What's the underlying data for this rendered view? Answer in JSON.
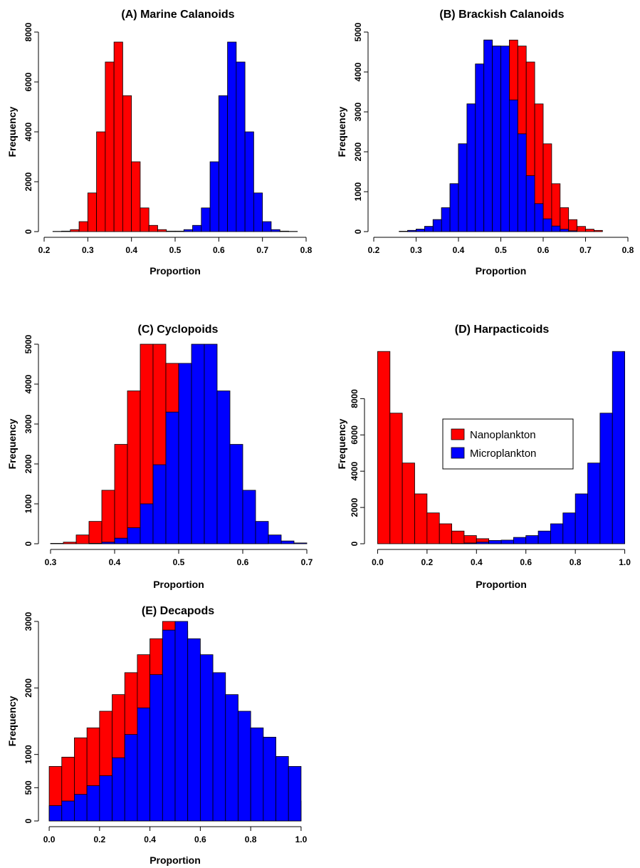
{
  "colors": {
    "nanoplankton": "#ff0000",
    "microplankton": "#0000ff"
  },
  "legend": {
    "items": [
      {
        "label": "Nanoplankton",
        "color": "#ff0000"
      },
      {
        "label": "Microplankton",
        "color": "#0000ff"
      }
    ]
  },
  "chart_data": [
    {
      "type": "bar",
      "title": "(A) Marine Calanoids",
      "xlabel": "Proportion",
      "ylabel": "Frequency",
      "xlim": [
        0.2,
        0.8
      ],
      "ylim": [
        0,
        8000
      ],
      "xticks": [
        "0.2",
        "0.3",
        "0.4",
        "0.5",
        "0.6",
        "0.7",
        "0.8"
      ],
      "yticks": [
        "0",
        "2000",
        "4000",
        "6000",
        "8000"
      ],
      "bin_width": 0.02,
      "series": [
        {
          "name": "Nanoplankton",
          "color": "#ff0000",
          "bins": [
            [
              0.22,
              10
            ],
            [
              0.24,
              20
            ],
            [
              0.26,
              80
            ],
            [
              0.28,
              400
            ],
            [
              0.3,
              1550
            ],
            [
              0.32,
              4000
            ],
            [
              0.34,
              6800
            ],
            [
              0.36,
              7600
            ],
            [
              0.38,
              5450
            ],
            [
              0.4,
              2800
            ],
            [
              0.42,
              950
            ],
            [
              0.44,
              250
            ],
            [
              0.46,
              80
            ],
            [
              0.48,
              20
            ]
          ]
        },
        {
          "name": "Microplankton",
          "color": "#0000ff",
          "bins": [
            [
              0.5,
              20
            ],
            [
              0.52,
              80
            ],
            [
              0.54,
              250
            ],
            [
              0.56,
              950
            ],
            [
              0.58,
              2800
            ],
            [
              0.6,
              5450
            ],
            [
              0.62,
              7600
            ],
            [
              0.64,
              6800
            ],
            [
              0.66,
              4000
            ],
            [
              0.68,
              1550
            ],
            [
              0.7,
              400
            ],
            [
              0.72,
              80
            ],
            [
              0.74,
              20
            ],
            [
              0.76,
              10
            ]
          ]
        }
      ]
    },
    {
      "type": "bar",
      "title": "(B) Brackish Calanoids",
      "xlabel": "Proportion",
      "ylabel": "Frequency",
      "xlim": [
        0.2,
        0.8
      ],
      "ylim": [
        0,
        5000
      ],
      "xticks": [
        "0.2",
        "0.3",
        "0.4",
        "0.5",
        "0.6",
        "0.7",
        "0.8"
      ],
      "yticks": [
        "0",
        "1000",
        "2000",
        "3000",
        "4000",
        "5000"
      ],
      "bin_width": 0.02,
      "series": [
        {
          "name": "Nanoplankton",
          "color": "#ff0000",
          "bins": [
            [
              0.26,
              10
            ],
            [
              0.28,
              30
            ],
            [
              0.3,
              60
            ],
            [
              0.32,
              130
            ],
            [
              0.34,
              300
            ],
            [
              0.36,
              600
            ],
            [
              0.38,
              1200
            ],
            [
              0.4,
              2200
            ],
            [
              0.42,
              3200
            ],
            [
              0.44,
              4200
            ],
            [
              0.46,
              4800
            ],
            [
              0.48,
              4650
            ],
            [
              0.5,
              3650
            ],
            [
              0.52,
              4800
            ],
            [
              0.54,
              4650
            ],
            [
              0.56,
              4250
            ],
            [
              0.58,
              3200
            ],
            [
              0.6,
              2200
            ],
            [
              0.62,
              1200
            ],
            [
              0.64,
              600
            ],
            [
              0.66,
              300
            ],
            [
              0.68,
              130
            ],
            [
              0.7,
              60
            ],
            [
              0.72,
              30
            ]
          ]
        },
        {
          "name": "Microplankton",
          "color": "#0000ff",
          "bins": [
            [
              0.28,
              30
            ],
            [
              0.3,
              60
            ],
            [
              0.32,
              130
            ],
            [
              0.34,
              300
            ],
            [
              0.36,
              600
            ],
            [
              0.38,
              1200
            ],
            [
              0.4,
              2200
            ],
            [
              0.42,
              3200
            ],
            [
              0.44,
              4200
            ],
            [
              0.46,
              4800
            ],
            [
              0.48,
              4650
            ],
            [
              0.5,
              4650
            ],
            [
              0.52,
              3300
            ],
            [
              0.54,
              2450
            ],
            [
              0.56,
              1400
            ],
            [
              0.58,
              700
            ],
            [
              0.6,
              320
            ],
            [
              0.62,
              140
            ],
            [
              0.64,
              60
            ],
            [
              0.66,
              20
            ]
          ]
        }
      ]
    },
    {
      "type": "bar",
      "title": "(C) Cyclopoids",
      "xlabel": "Proportion",
      "ylabel": "Frequency",
      "xlim": [
        0.29,
        0.71
      ],
      "ylim": [
        0,
        5000
      ],
      "xticks": [
        "0.3",
        "0.4",
        "0.5",
        "0.6",
        "0.7"
      ],
      "yticks": [
        "0",
        "1000",
        "2000",
        "3000",
        "4000",
        "5000"
      ],
      "bin_width": 0.02,
      "series": [
        {
          "name": "Nanoplankton",
          "color": "#ff0000",
          "bins": [
            [
              0.3,
              10
            ],
            [
              0.32,
              40
            ],
            [
              0.34,
              220
            ],
            [
              0.36,
              560
            ],
            [
              0.38,
              1340
            ],
            [
              0.4,
              2490
            ],
            [
              0.42,
              3830
            ],
            [
              0.44,
              5010
            ],
            [
              0.46,
              5240
            ],
            [
              0.48,
              4520
            ],
            [
              0.5,
              3300
            ],
            [
              0.52,
              2000
            ],
            [
              0.54,
              1000
            ],
            [
              0.56,
              400
            ],
            [
              0.58,
              140
            ],
            [
              0.6,
              40
            ],
            [
              0.62,
              10
            ]
          ]
        },
        {
          "name": "Microplankton",
          "color": "#0000ff",
          "bins": [
            [
              0.36,
              10
            ],
            [
              0.38,
              40
            ],
            [
              0.4,
              140
            ],
            [
              0.42,
              400
            ],
            [
              0.44,
              1000
            ],
            [
              0.46,
              1980
            ],
            [
              0.48,
              3300
            ],
            [
              0.5,
              4520
            ],
            [
              0.52,
              5240
            ],
            [
              0.54,
              5010
            ],
            [
              0.56,
              3830
            ],
            [
              0.58,
              2490
            ],
            [
              0.6,
              1340
            ],
            [
              0.62,
              560
            ],
            [
              0.64,
              220
            ],
            [
              0.66,
              70
            ],
            [
              0.68,
              20
            ]
          ]
        }
      ]
    },
    {
      "type": "bar",
      "title": "(D) Harpacticoids",
      "xlabel": "Proportion",
      "ylabel": "Frequency",
      "xlim": [
        -0.03,
        1.03
      ],
      "ylim": [
        0,
        11000
      ],
      "xticks": [
        "0.0",
        "0.2",
        "0.4",
        "0.6",
        "0.8",
        "1.0"
      ],
      "yticks": [
        "0",
        "2000",
        "4000",
        "6000",
        "8000"
      ],
      "bin_width": 0.05,
      "series": [
        {
          "name": "Nanoplankton",
          "color": "#ff0000",
          "bins": [
            [
              0.0,
              10600
            ],
            [
              0.05,
              7200
            ],
            [
              0.1,
              4450
            ],
            [
              0.15,
              2750
            ],
            [
              0.2,
              1700
            ],
            [
              0.25,
              1100
            ],
            [
              0.3,
              700
            ],
            [
              0.35,
              450
            ],
            [
              0.4,
              280
            ],
            [
              0.45,
              180
            ],
            [
              0.5,
              120
            ],
            [
              0.55,
              70
            ],
            [
              0.6,
              40
            ],
            [
              0.65,
              20
            ]
          ]
        },
        {
          "name": "Microplankton",
          "color": "#0000ff",
          "bins": [
            [
              0.3,
              10
            ],
            [
              0.35,
              40
            ],
            [
              0.4,
              90
            ],
            [
              0.45,
              180
            ],
            [
              0.5,
              200
            ],
            [
              0.55,
              350
            ],
            [
              0.6,
              450
            ],
            [
              0.65,
              700
            ],
            [
              0.7,
              1100
            ],
            [
              0.75,
              1700
            ],
            [
              0.8,
              2750
            ],
            [
              0.85,
              4450
            ],
            [
              0.9,
              7200
            ],
            [
              0.95,
              10600
            ]
          ]
        }
      ]
    },
    {
      "type": "bar",
      "title": "(E) Decapods",
      "xlabel": "Proportion",
      "ylabel": "Frequency",
      "xlim": [
        -0.02,
        1.02
      ],
      "ylim": [
        0,
        3000
      ],
      "xticks": [
        "0.0",
        "0.2",
        "0.4",
        "0.6",
        "0.8",
        "1.0"
      ],
      "yticks": [
        "0",
        "500",
        "1000",
        "2000",
        "3000"
      ],
      "bin_width": 0.05,
      "series": [
        {
          "name": "Nanoplankton",
          "color": "#ff0000",
          "bins": [
            [
              0.0,
              820
            ],
            [
              0.05,
              960
            ],
            [
              0.1,
              1250
            ],
            [
              0.15,
              1400
            ],
            [
              0.2,
              1650
            ],
            [
              0.25,
              1900
            ],
            [
              0.3,
              2230
            ],
            [
              0.35,
              2500
            ],
            [
              0.4,
              2740
            ],
            [
              0.45,
              3000
            ],
            [
              0.5,
              2860
            ],
            [
              0.55,
              2520
            ],
            [
              0.6,
              2270
            ],
            [
              0.65,
              1900
            ],
            [
              0.7,
              1650
            ],
            [
              0.75,
              1400
            ],
            [
              0.8,
              1270
            ],
            [
              0.85,
              970
            ],
            [
              0.9,
              820
            ],
            [
              0.95,
              300
            ]
          ]
        },
        {
          "name": "Microplankton",
          "color": "#0000ff",
          "bins": [
            [
              0.0,
              230
            ],
            [
              0.05,
              300
            ],
            [
              0.1,
              400
            ],
            [
              0.15,
              530
            ],
            [
              0.2,
              680
            ],
            [
              0.25,
              950
            ],
            [
              0.3,
              1300
            ],
            [
              0.35,
              1700
            ],
            [
              0.4,
              2200
            ],
            [
              0.45,
              2870
            ],
            [
              0.5,
              3020
            ],
            [
              0.55,
              2740
            ],
            [
              0.6,
              2500
            ],
            [
              0.65,
              2230
            ],
            [
              0.7,
              1900
            ],
            [
              0.75,
              1650
            ],
            [
              0.8,
              1400
            ],
            [
              0.85,
              1260
            ],
            [
              0.9,
              970
            ],
            [
              0.95,
              820
            ]
          ]
        }
      ]
    }
  ]
}
